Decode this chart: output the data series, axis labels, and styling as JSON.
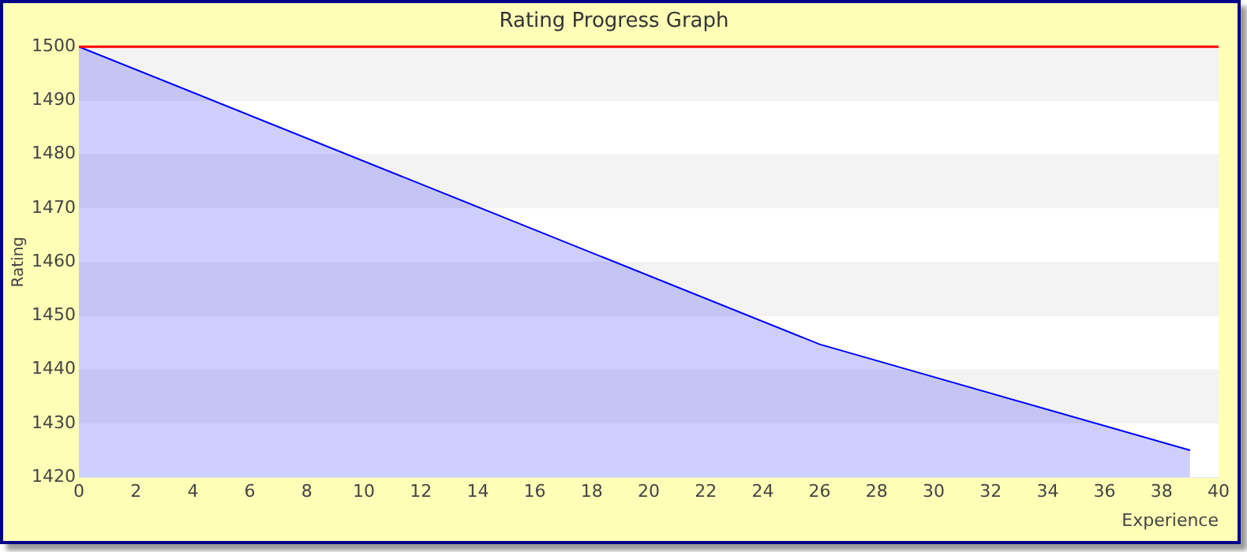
{
  "chart_data": {
    "type": "area",
    "title": "Rating Progress Graph",
    "xlabel": "Experience",
    "ylabel": "Rating",
    "x": [
      0,
      26,
      39
    ],
    "series": [
      {
        "color": "#0000ff",
        "values": [
          1500,
          1444.7,
          1425
        ]
      }
    ],
    "xlim": [
      0,
      40
    ],
    "xticks": [
      0,
      2,
      4,
      6,
      8,
      10,
      12,
      14,
      16,
      18,
      20,
      22,
      24,
      26,
      28,
      30,
      32,
      34,
      36,
      38,
      40
    ],
    "ylim": [
      1420,
      1500
    ],
    "yticks": [
      1420,
      1430,
      1440,
      1450,
      1460,
      1470,
      1480,
      1490,
      1500
    ],
    "grid": "y",
    "legend": false,
    "ref_lines": [
      {
        "axis": "y",
        "value": 1500,
        "color": "#ff0000"
      }
    ]
  }
}
